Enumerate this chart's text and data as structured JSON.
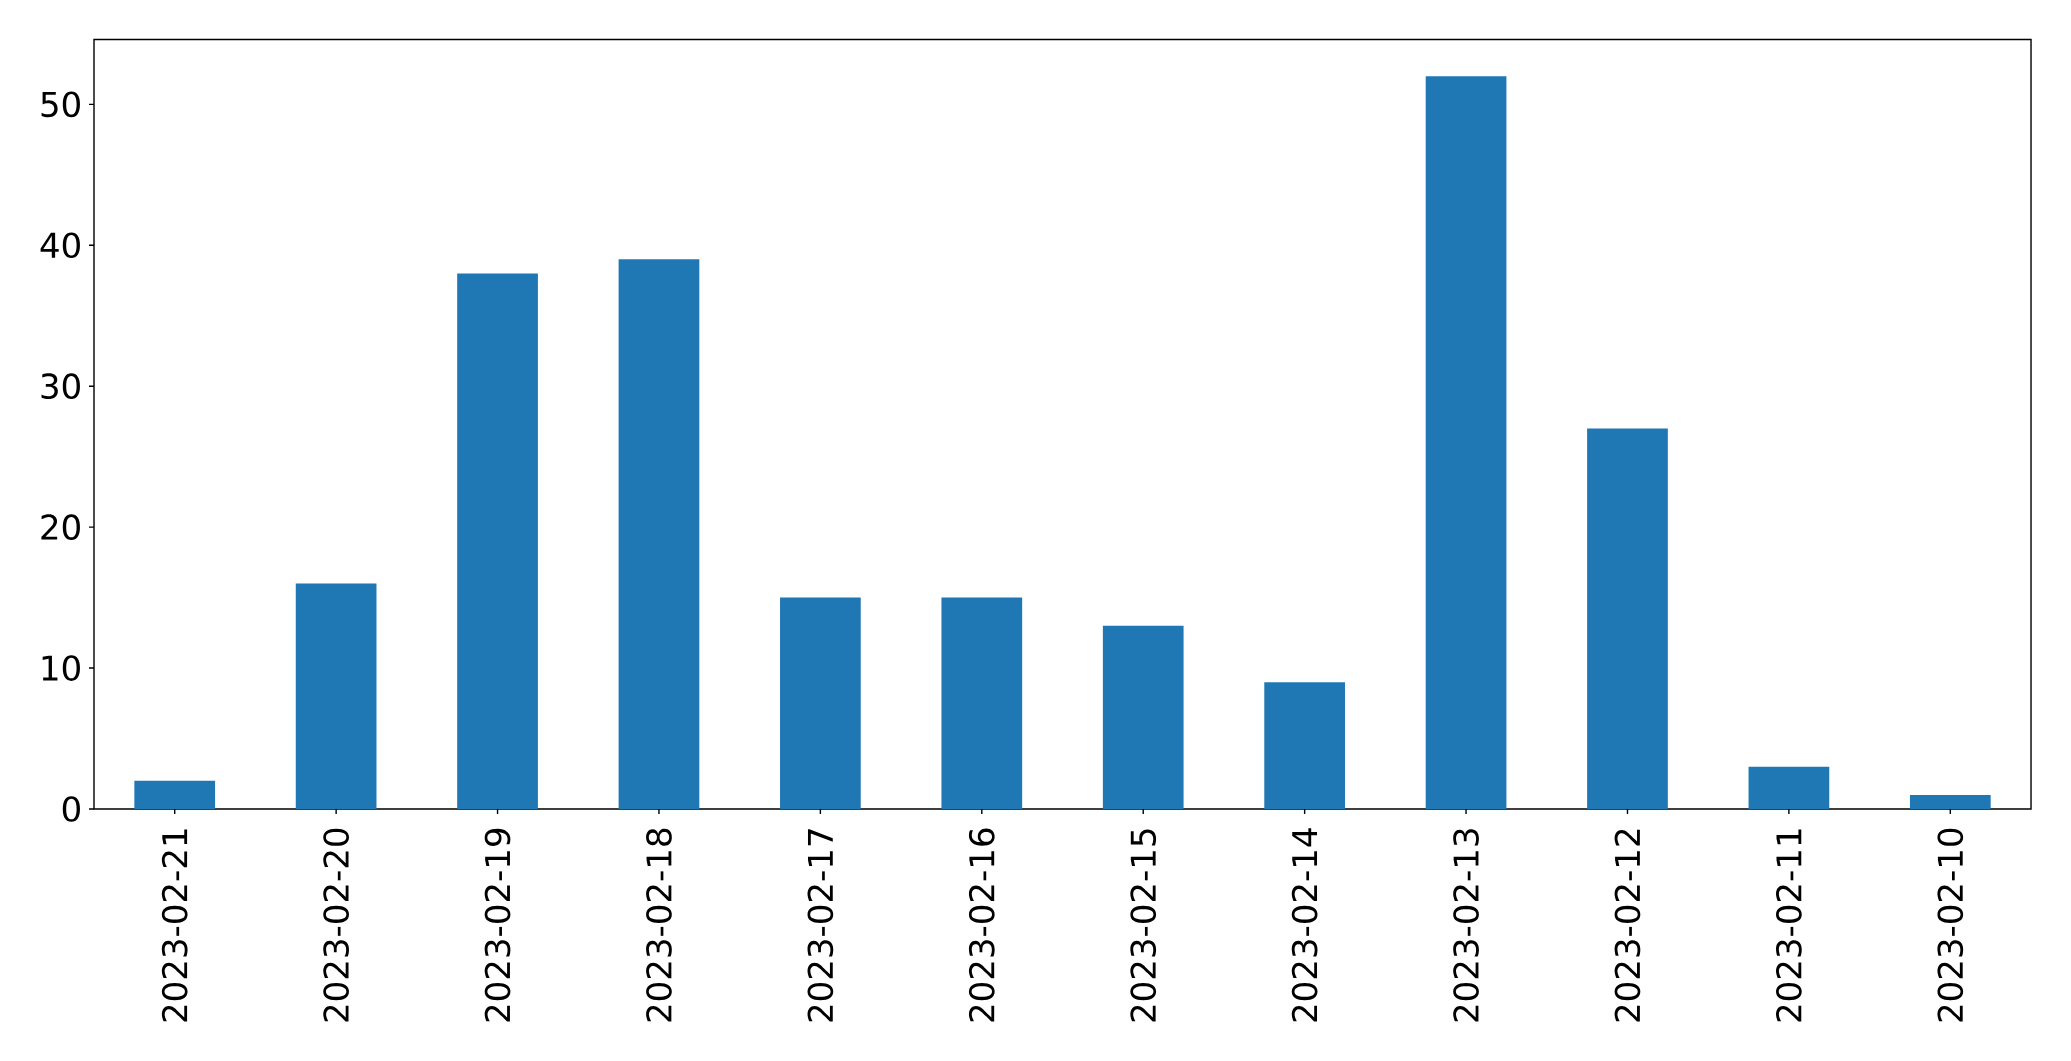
{
  "chart_data": {
    "type": "bar",
    "categories": [
      "2023-02-21",
      "2023-02-20",
      "2023-02-19",
      "2023-02-18",
      "2023-02-17",
      "2023-02-16",
      "2023-02-15",
      "2023-02-14",
      "2023-02-13",
      "2023-02-12",
      "2023-02-11",
      "2023-02-10"
    ],
    "values": [
      2,
      16,
      38,
      39,
      15,
      15,
      13,
      9,
      52,
      27,
      3,
      1
    ],
    "color": "#1f77b4",
    "ylim": [
      0,
      54.6
    ],
    "yticks": [
      0,
      10,
      20,
      30,
      40,
      50
    ]
  }
}
